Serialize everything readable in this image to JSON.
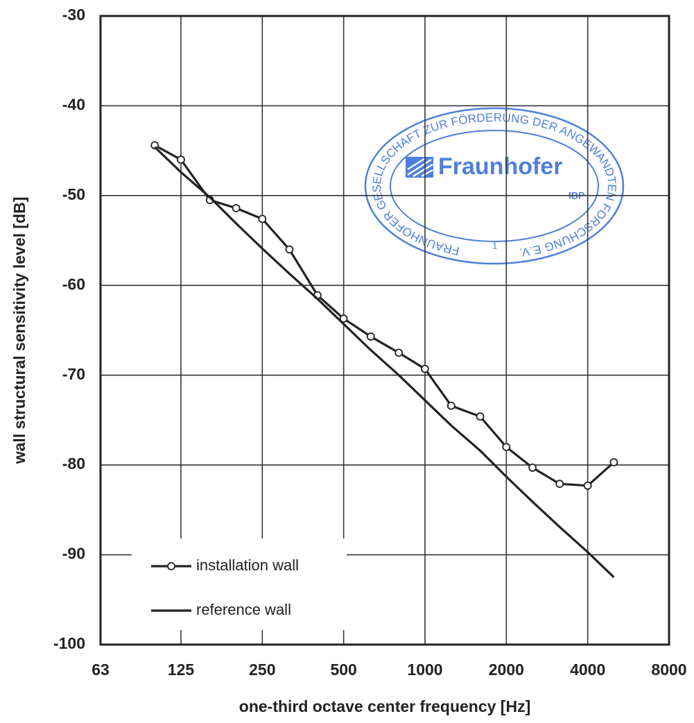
{
  "chart_data": {
    "type": "line",
    "xlabel": "one-third octave center frequency  [Hz]",
    "ylabel": "wall structural sensitivity level  [dB]",
    "x": [
      100,
      125,
      160,
      200,
      250,
      315,
      400,
      500,
      630,
      800,
      1000,
      1250,
      1600,
      2000,
      2500,
      3150,
      4000,
      5000
    ],
    "series": [
      {
        "name": "installation wall",
        "color": "#222222",
        "marker": "circle",
        "values": [
          -44.4,
          -46.0,
          -50.5,
          -51.4,
          -52.6,
          -56.0,
          -61.1,
          -63.7,
          -65.7,
          -67.5,
          -69.3,
          -73.4,
          -74.6,
          -78.0,
          -80.3,
          -82.1,
          -82.3,
          -79.7
        ]
      },
      {
        "name": "reference wall",
        "color": "#222222",
        "values": [
          -44.6,
          -47.4,
          -50.2,
          -53.1,
          -55.9,
          -58.7,
          -61.5,
          -64.3,
          -67.2,
          -70.0,
          -72.8,
          -75.6,
          -78.4,
          -81.3,
          -84.1,
          -86.9,
          -89.7,
          -92.5
        ]
      }
    ],
    "xscale": "log",
    "xlim": [
      63,
      8000
    ],
    "xticks": [
      63,
      125,
      250,
      500,
      1000,
      2000,
      4000,
      8000
    ],
    "ylim": [
      -100,
      -30
    ],
    "yticks": [
      -100,
      -90,
      -80,
      -70,
      -60,
      -50,
      -40,
      -30
    ],
    "grid": true,
    "legend": "lower left"
  },
  "stamp": {
    "brand": "Fraunhofer",
    "institute": "IBP",
    "ring": "FRAUNHOFER GESELLSCHAFT ZUR FÖRDERUNG DER ANGEWANDTEN FORSCHUNG E.V.",
    "number": "1"
  }
}
